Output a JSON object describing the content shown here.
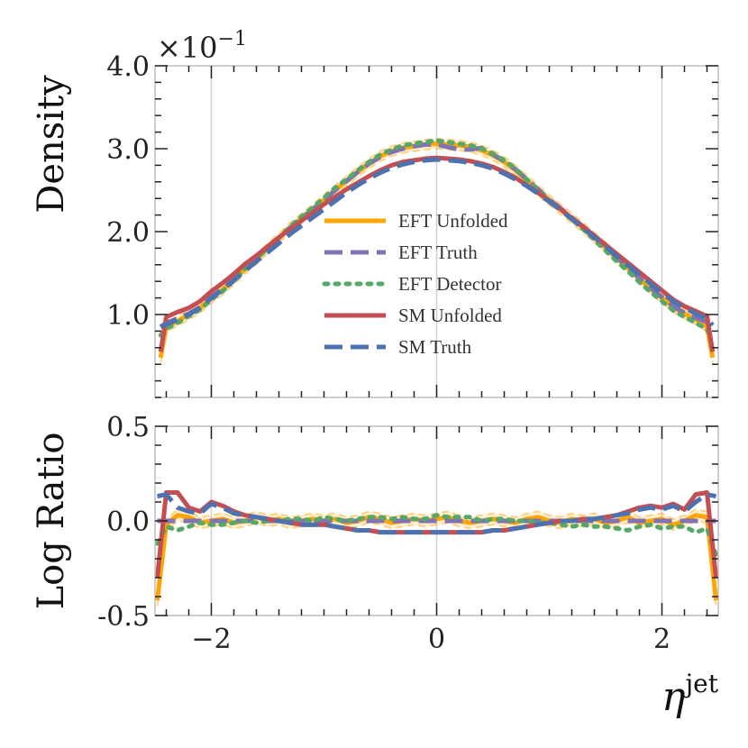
{
  "chart_data": [
    {
      "type": "line",
      "panel": "main",
      "ylabel": "Density",
      "ylim": [
        0,
        0.4
      ],
      "xlim": [
        -2.5,
        2.5
      ],
      "y_scale_label": {
        "base": "×10",
        "exponent": "−1"
      },
      "yticks": [
        {
          "value": 0.1,
          "label": "1.0"
        },
        {
          "value": 0.2,
          "label": "2.0"
        },
        {
          "value": 0.3,
          "label": "3.0"
        },
        {
          "value": 0.4,
          "label": "4.0"
        }
      ],
      "legend_position": "center",
      "x": [
        -2.45,
        -2.4,
        -2.3,
        -2.2,
        -2.1,
        -2.0,
        -1.9,
        -1.8,
        -1.7,
        -1.6,
        -1.5,
        -1.4,
        -1.3,
        -1.2,
        -1.1,
        -1.0,
        -0.9,
        -0.8,
        -0.7,
        -0.6,
        -0.5,
        -0.4,
        -0.3,
        -0.2,
        -0.1,
        0.0,
        0.1,
        0.2,
        0.3,
        0.4,
        0.5,
        0.6,
        0.7,
        0.8,
        0.9,
        1.0,
        1.1,
        1.2,
        1.3,
        1.4,
        1.5,
        1.6,
        1.7,
        1.8,
        1.9,
        2.0,
        2.1,
        2.2,
        2.3,
        2.4,
        2.45
      ],
      "series": [
        {
          "name": "EFT Unfolded",
          "color": "#ffa500",
          "dash": "solid",
          "band": true,
          "values": [
            0.048,
            0.085,
            0.092,
            0.1,
            0.108,
            0.12,
            0.13,
            0.142,
            0.155,
            0.167,
            0.18,
            0.192,
            0.205,
            0.216,
            0.227,
            0.238,
            0.25,
            0.261,
            0.272,
            0.282,
            0.291,
            0.297,
            0.301,
            0.303,
            0.305,
            0.306,
            0.305,
            0.304,
            0.302,
            0.298,
            0.292,
            0.284,
            0.274,
            0.262,
            0.25,
            0.238,
            0.227,
            0.216,
            0.205,
            0.193,
            0.181,
            0.168,
            0.156,
            0.143,
            0.131,
            0.12,
            0.109,
            0.101,
            0.094,
            0.085,
            0.048
          ]
        },
        {
          "name": "EFT Truth",
          "color": "#8172b3",
          "dash": "long",
          "values": [
            0.085,
            0.09,
            0.095,
            0.101,
            0.109,
            0.121,
            0.131,
            0.143,
            0.156,
            0.168,
            0.18,
            0.193,
            0.205,
            0.216,
            0.227,
            0.238,
            0.25,
            0.261,
            0.272,
            0.282,
            0.29,
            0.296,
            0.3,
            0.303,
            0.305,
            0.305,
            0.302,
            0.299,
            0.299,
            0.301,
            0.293,
            0.285,
            0.275,
            0.263,
            0.251,
            0.239,
            0.228,
            0.217,
            0.206,
            0.194,
            0.182,
            0.169,
            0.156,
            0.144,
            0.132,
            0.121,
            0.11,
            0.102,
            0.096,
            0.091,
            0.086
          ]
        },
        {
          "name": "EFT Detector",
          "color": "#55a868",
          "dash": "dotted",
          "values": [
            0.075,
            0.083,
            0.09,
            0.098,
            0.106,
            0.118,
            0.128,
            0.141,
            0.155,
            0.167,
            0.18,
            0.193,
            0.206,
            0.218,
            0.229,
            0.241,
            0.253,
            0.263,
            0.274,
            0.284,
            0.293,
            0.299,
            0.304,
            0.306,
            0.308,
            0.31,
            0.308,
            0.306,
            0.304,
            0.3,
            0.294,
            0.286,
            0.276,
            0.263,
            0.25,
            0.238,
            0.227,
            0.215,
            0.203,
            0.19,
            0.177,
            0.164,
            0.152,
            0.139,
            0.127,
            0.116,
            0.105,
            0.097,
            0.09,
            0.082,
            0.07
          ]
        },
        {
          "name": "SM Unfolded",
          "color": "#c44e52",
          "dash": "solid",
          "values": [
            0.055,
            0.097,
            0.103,
            0.108,
            0.116,
            0.128,
            0.138,
            0.149,
            0.161,
            0.171,
            0.182,
            0.193,
            0.203,
            0.213,
            0.223,
            0.233,
            0.242,
            0.251,
            0.259,
            0.267,
            0.274,
            0.28,
            0.284,
            0.286,
            0.288,
            0.289,
            0.288,
            0.287,
            0.285,
            0.282,
            0.278,
            0.272,
            0.265,
            0.256,
            0.247,
            0.237,
            0.227,
            0.216,
            0.206,
            0.195,
            0.184,
            0.173,
            0.162,
            0.151,
            0.14,
            0.129,
            0.118,
            0.11,
            0.104,
            0.098,
            0.055
          ]
        },
        {
          "name": "SM Truth",
          "color": "#4c72b0",
          "dash": "long",
          "values": [
            0.085,
            0.088,
            0.094,
            0.1,
            0.108,
            0.12,
            0.13,
            0.141,
            0.153,
            0.164,
            0.175,
            0.186,
            0.197,
            0.207,
            0.217,
            0.227,
            0.237,
            0.247,
            0.256,
            0.264,
            0.271,
            0.277,
            0.281,
            0.284,
            0.286,
            0.287,
            0.286,
            0.285,
            0.283,
            0.28,
            0.276,
            0.27,
            0.263,
            0.255,
            0.246,
            0.236,
            0.226,
            0.215,
            0.204,
            0.193,
            0.182,
            0.17,
            0.159,
            0.148,
            0.137,
            0.126,
            0.116,
            0.108,
            0.101,
            0.095,
            0.087
          ]
        }
      ]
    },
    {
      "type": "line",
      "panel": "ratio",
      "ylabel": "Log Ratio",
      "ylim": [
        -0.5,
        0.5
      ],
      "xlim": [
        -2.5,
        2.5
      ],
      "yticks": [
        {
          "value": 0.5,
          "label": "0.5"
        },
        {
          "value": 0.0,
          "label": "0.0"
        },
        {
          "value": -0.5,
          "label": "-0.5"
        }
      ],
      "xticks": [
        {
          "value": -2,
          "label": "−2"
        },
        {
          "value": 0,
          "label": "0"
        },
        {
          "value": 2,
          "label": "2"
        }
      ],
      "xlabel": {
        "symbol": "η",
        "superscript": "jet"
      },
      "x": [
        -2.48,
        -2.4,
        -2.3,
        -2.2,
        -2.1,
        -2.0,
        -1.9,
        -1.8,
        -1.7,
        -1.6,
        -1.5,
        -1.4,
        -1.3,
        -1.2,
        -1.1,
        -1.0,
        -0.9,
        -0.8,
        -0.7,
        -0.6,
        -0.5,
        -0.4,
        -0.3,
        -0.2,
        -0.1,
        0.0,
        0.1,
        0.2,
        0.3,
        0.4,
        0.5,
        0.6,
        0.7,
        0.8,
        0.9,
        1.0,
        1.1,
        1.2,
        1.3,
        1.4,
        1.5,
        1.6,
        1.7,
        1.8,
        1.9,
        2.0,
        2.1,
        2.2,
        2.3,
        2.4,
        2.48
      ],
      "series": [
        {
          "name": "EFT Unfolded",
          "color": "#ffa500",
          "dash": "solid",
          "band": true,
          "values": [
            -0.42,
            -0.02,
            0.03,
            0.02,
            -0.01,
            0.0,
            0.01,
            -0.01,
            0.0,
            0.02,
            0.0,
            0.01,
            -0.01,
            0.0,
            0.01,
            0.0,
            0.01,
            -0.01,
            0.0,
            0.02,
            0.01,
            -0.01,
            0.0,
            0.01,
            0.0,
            0.01,
            0.02,
            0.0,
            -0.01,
            0.0,
            0.01,
            0.0,
            -0.01,
            0.01,
            0.02,
            0.0,
            -0.01,
            0.01,
            0.0,
            0.01,
            -0.01,
            0.0,
            0.02,
            -0.01,
            0.0,
            0.01,
            -0.02,
            0.0,
            0.03,
            0.02,
            -0.42
          ]
        },
        {
          "name": "EFT Truth",
          "color": "#8172b3",
          "dash": "long",
          "values": [
            0.0,
            0.0,
            0.0,
            0.0,
            0.0,
            0.0,
            0.0,
            0.0,
            0.0,
            0.0,
            0.0,
            0.0,
            0.0,
            0.0,
            0.0,
            0.0,
            0.0,
            0.0,
            0.0,
            0.0,
            0.0,
            0.0,
            0.0,
            0.0,
            0.0,
            0.0,
            0.0,
            0.0,
            0.0,
            0.0,
            0.0,
            0.0,
            0.0,
            0.0,
            0.0,
            0.0,
            0.0,
            0.0,
            0.0,
            0.0,
            0.0,
            0.0,
            0.0,
            0.0,
            0.0,
            0.0,
            0.0,
            0.0,
            0.0,
            0.0,
            0.0
          ]
        },
        {
          "name": "EFT Detector",
          "color": "#55a868",
          "dash": "dotted",
          "values": [
            -0.12,
            -0.03,
            -0.05,
            -0.03,
            -0.01,
            -0.02,
            -0.02,
            -0.01,
            0.0,
            -0.01,
            0.0,
            0.0,
            0.01,
            0.01,
            0.0,
            0.02,
            0.01,
            0.0,
            0.01,
            0.02,
            0.02,
            0.01,
            0.02,
            0.01,
            0.01,
            0.03,
            0.02,
            0.02,
            0.02,
            0.0,
            0.01,
            0.01,
            0.0,
            0.0,
            -0.01,
            -0.01,
            -0.02,
            -0.03,
            -0.02,
            -0.03,
            -0.03,
            -0.04,
            -0.05,
            -0.03,
            -0.02,
            -0.04,
            -0.03,
            -0.03,
            -0.06,
            -0.04,
            -0.18
          ]
        },
        {
          "name": "SM Unfolded",
          "color": "#c44e52",
          "dash": "solid",
          "values": [
            -0.3,
            0.15,
            0.15,
            0.07,
            0.05,
            0.1,
            0.08,
            0.05,
            0.03,
            0.02,
            0.01,
            0.0,
            -0.01,
            -0.02,
            -0.02,
            -0.02,
            -0.03,
            -0.04,
            -0.05,
            -0.05,
            -0.06,
            -0.06,
            -0.06,
            -0.06,
            -0.06,
            -0.06,
            -0.06,
            -0.06,
            -0.06,
            -0.06,
            -0.05,
            -0.05,
            -0.04,
            -0.03,
            -0.02,
            -0.01,
            0.0,
            0.0,
            0.01,
            0.01,
            0.02,
            0.03,
            0.05,
            0.07,
            0.08,
            0.07,
            0.09,
            0.06,
            0.14,
            0.15,
            -0.3
          ]
        },
        {
          "name": "SM Truth",
          "color": "#4c72b0",
          "dash": "long",
          "values": [
            0.13,
            0.14,
            0.07,
            0.05,
            0.04,
            0.09,
            0.07,
            0.04,
            0.03,
            0.02,
            0.01,
            0.0,
            -0.01,
            -0.02,
            -0.02,
            -0.02,
            -0.03,
            -0.04,
            -0.05,
            -0.05,
            -0.06,
            -0.06,
            -0.06,
            -0.06,
            -0.06,
            -0.06,
            -0.06,
            -0.06,
            -0.06,
            -0.06,
            -0.05,
            -0.05,
            -0.04,
            -0.03,
            -0.02,
            -0.01,
            0.0,
            0.0,
            0.01,
            0.01,
            0.02,
            0.03,
            0.04,
            0.06,
            0.07,
            0.06,
            0.08,
            0.05,
            0.1,
            0.14,
            0.13
          ]
        }
      ]
    }
  ]
}
